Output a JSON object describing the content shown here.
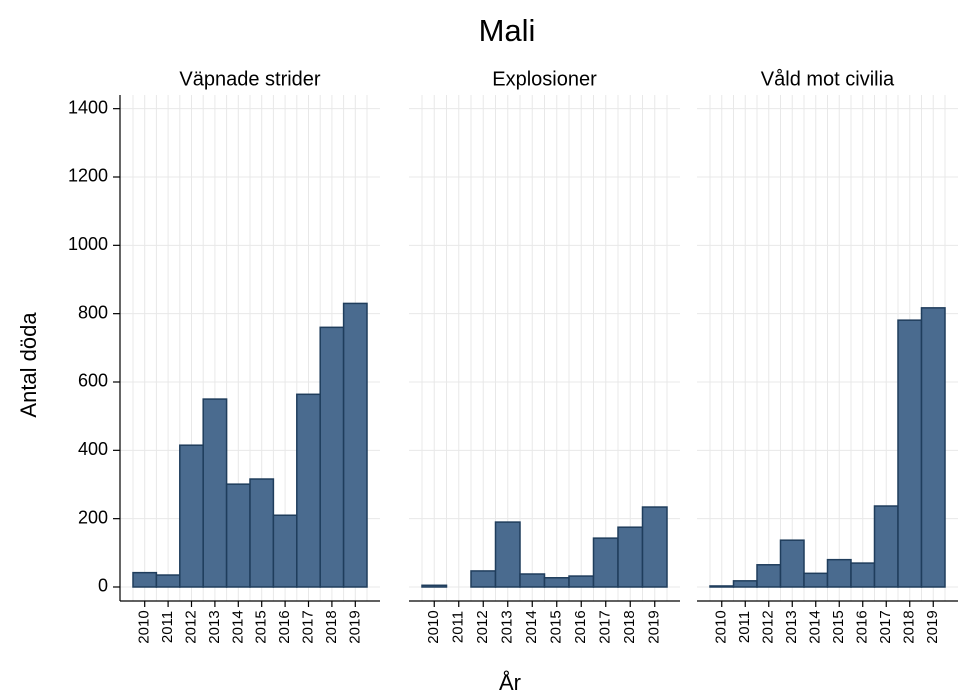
{
  "title": "Mali",
  "y_label": "Antal döda",
  "x_label": "År",
  "ylim": [
    -41,
    1440
  ],
  "yticks": [
    0,
    200,
    400,
    600,
    800,
    1000,
    1200,
    1400
  ],
  "grid": true,
  "chart_data": [
    {
      "type": "bar",
      "title": "Väpnade strider",
      "color": "#4a6b8f",
      "categories": [
        "2010",
        "2011",
        "2012",
        "2013",
        "2014",
        "2015",
        "2016",
        "2017",
        "2018",
        "2019"
      ],
      "values": [
        42,
        35,
        415,
        550,
        301,
        316,
        210,
        564,
        760,
        830
      ]
    },
    {
      "type": "bar",
      "title": "Explosioner",
      "color": "#4a6b8f",
      "categories": [
        "2010",
        "2011",
        "2012",
        "2013",
        "2014",
        "2015",
        "2016",
        "2017",
        "2018",
        "2019"
      ],
      "values": [
        5,
        0,
        47,
        190,
        38,
        27,
        32,
        143,
        175,
        234
      ]
    },
    {
      "type": "bar",
      "title": "Våld mot civilia",
      "color": "#4a6b8f",
      "categories": [
        "2010",
        "2011",
        "2012",
        "2013",
        "2014",
        "2015",
        "2016",
        "2017",
        "2018",
        "2019"
      ],
      "values": [
        3,
        18,
        65,
        137,
        40,
        80,
        70,
        237,
        781,
        817
      ]
    }
  ]
}
